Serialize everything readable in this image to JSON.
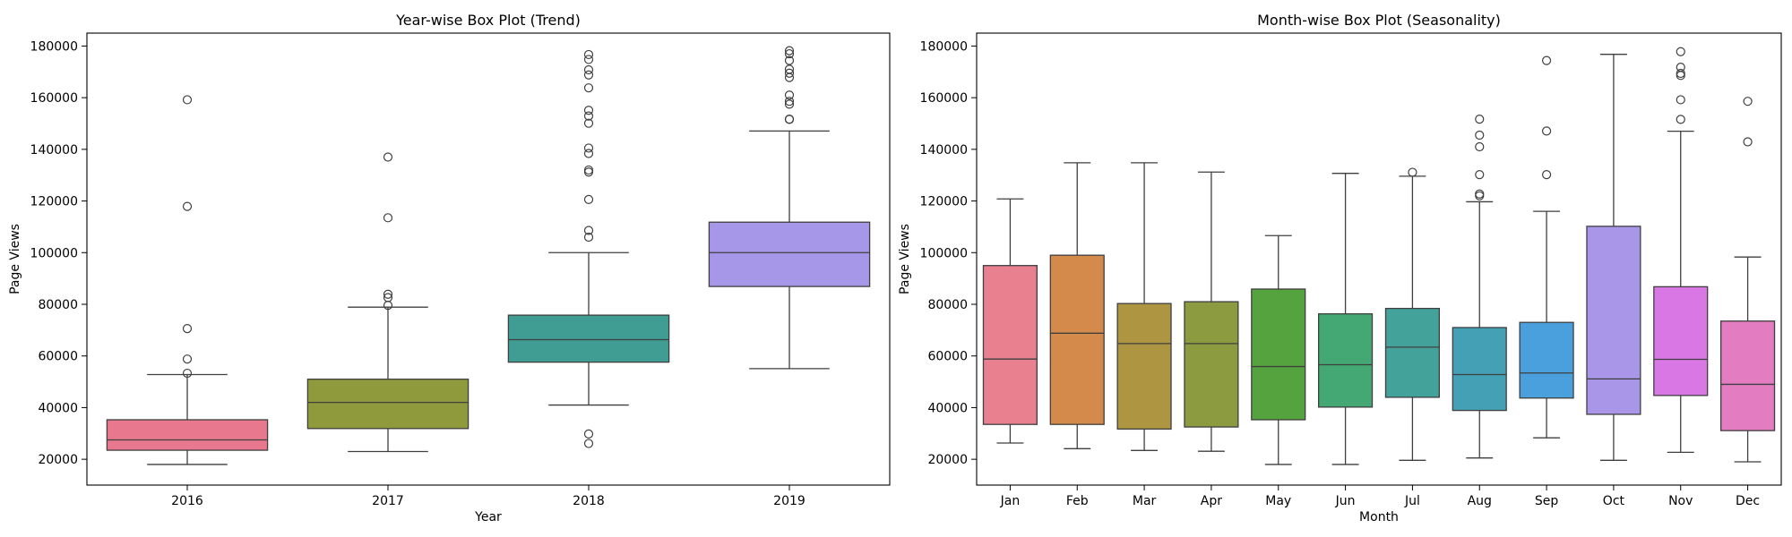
{
  "chart_data": [
    {
      "type": "box",
      "title": "Year-wise Box Plot (Trend)",
      "xlabel": "Year",
      "ylabel": "Page Views",
      "ylim": [
        10000,
        185000
      ],
      "yticks": [
        20000,
        40000,
        60000,
        80000,
        100000,
        120000,
        140000,
        160000,
        180000
      ],
      "ytick_labels": [
        "20000",
        "40000",
        "60000",
        "80000",
        "100000",
        "120000",
        "140000",
        "160000",
        "180000"
      ],
      "grid": false,
      "categories": [
        "2016",
        "2017",
        "2018",
        "2019"
      ],
      "colors": [
        "#e8788d",
        "#8f9a3c",
        "#3f9d94",
        "#a797e8"
      ],
      "boxes": [
        {
          "whislo": 18000,
          "q1": 23500,
          "med": 27500,
          "q3": 35300,
          "whishi": 52800,
          "fliers": [
            53300,
            58800,
            70600,
            117900,
            159200
          ]
        },
        {
          "whislo": 23000,
          "q1": 31900,
          "med": 42000,
          "q3": 51000,
          "whishi": 78900,
          "fliers": [
            79600,
            82600,
            83900,
            113500,
            137000
          ]
        },
        {
          "whislo": 41000,
          "q1": 57600,
          "med": 66300,
          "q3": 75800,
          "whishi": 100000,
          "fliers": [
            26100,
            29800,
            106000,
            108600,
            120600,
            131200,
            132000,
            138400,
            140500,
            150100,
            152900,
            155100,
            163800,
            168800,
            170800,
            174800,
            176700
          ]
        },
        {
          "whislo": 55100,
          "q1": 86900,
          "med": 100000,
          "q3": 111800,
          "whishi": 147100,
          "fliers": [
            151600,
            151700,
            157500,
            158600,
            161000,
            167800,
            169500,
            171000,
            174400,
            177000,
            178200
          ]
        }
      ]
    },
    {
      "type": "box",
      "title": "Month-wise Box Plot (Seasonality)",
      "xlabel": "Month",
      "ylabel": "Page Views",
      "ylim": [
        10000,
        185000
      ],
      "yticks": [
        20000,
        40000,
        60000,
        80000,
        100000,
        120000,
        140000,
        160000,
        180000
      ],
      "ytick_labels": [
        "20000",
        "40000",
        "60000",
        "80000",
        "100000",
        "120000",
        "140000",
        "160000",
        "180000"
      ],
      "grid": false,
      "categories": [
        "Jan",
        "Feb",
        "Mar",
        "Apr",
        "May",
        "Jun",
        "Jul",
        "Aug",
        "Sep",
        "Oct",
        "Nov",
        "Dec"
      ],
      "colors": [
        "#e8808f",
        "#d48a4a",
        "#ad9541",
        "#8c9a40",
        "#55a33f",
        "#43a874",
        "#43a39a",
        "#44a0b4",
        "#4aa0dc",
        "#a996e8",
        "#d978e5",
        "#e37cc1"
      ],
      "boxes": [
        {
          "whislo": 26300,
          "q1": 33500,
          "med": 58800,
          "q3": 95000,
          "whishi": 120800,
          "fliers": []
        },
        {
          "whislo": 24100,
          "q1": 33500,
          "med": 68800,
          "q3": 99000,
          "whishi": 134800,
          "fliers": []
        },
        {
          "whislo": 23400,
          "q1": 31700,
          "med": 64800,
          "q3": 80300,
          "whishi": 134800,
          "fliers": []
        },
        {
          "whislo": 23100,
          "q1": 32500,
          "med": 64800,
          "q3": 81000,
          "whishi": 131200,
          "fliers": []
        },
        {
          "whislo": 18000,
          "q1": 35300,
          "med": 55900,
          "q3": 85900,
          "whishi": 106600,
          "fliers": []
        },
        {
          "whislo": 18000,
          "q1": 40200,
          "med": 56600,
          "q3": 76300,
          "whishi": 130700,
          "fliers": []
        },
        {
          "whislo": 19600,
          "q1": 44000,
          "med": 63400,
          "q3": 78400,
          "whishi": 129600,
          "fliers": [
            131100
          ]
        },
        {
          "whislo": 20500,
          "q1": 38900,
          "med": 52800,
          "q3": 71000,
          "whishi": 119700,
          "fliers": [
            122000,
            122700,
            130200,
            141000,
            145500,
            151700
          ]
        },
        {
          "whislo": 28300,
          "q1": 43700,
          "med": 53400,
          "q3": 73000,
          "whishi": 116000,
          "fliers": [
            130200,
            147100,
            174400
          ]
        },
        {
          "whislo": 19600,
          "q1": 37400,
          "med": 51100,
          "q3": 110200,
          "whishi": 176800,
          "fliers": []
        },
        {
          "whislo": 22700,
          "q1": 44700,
          "med": 58700,
          "q3": 86800,
          "whishi": 147000,
          "fliers": [
            151600,
            159200,
            168600,
            169400,
            171800,
            177800
          ]
        },
        {
          "whislo": 19000,
          "q1": 31100,
          "med": 49000,
          "q3": 73500,
          "whishi": 98300,
          "fliers": [
            142900,
            158600
          ]
        }
      ]
    }
  ]
}
